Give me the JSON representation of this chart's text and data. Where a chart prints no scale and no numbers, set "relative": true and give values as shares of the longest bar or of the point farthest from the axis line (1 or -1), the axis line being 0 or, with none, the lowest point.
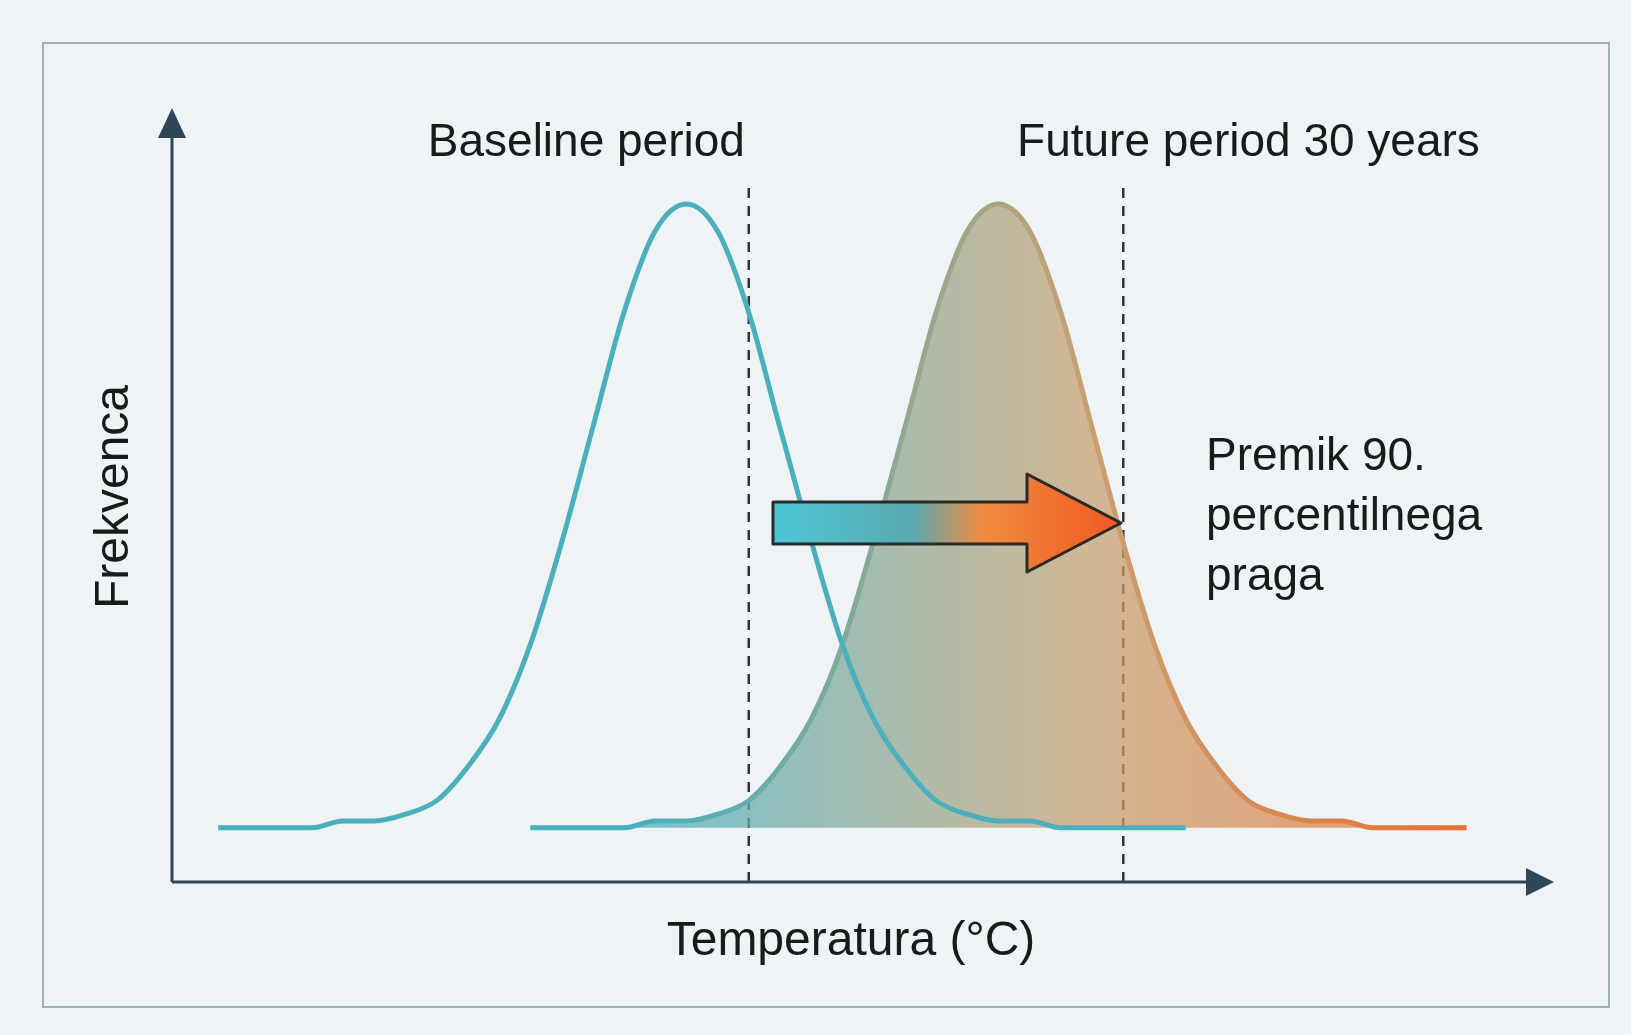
{
  "chart_data": {
    "type": "line",
    "relative": true,
    "legend": false,
    "marker": "none",
    "line_style": "solid",
    "categories": [
      null,
      null,
      null,
      null,
      null,
      null,
      null,
      null,
      null,
      null,
      null,
      null,
      null,
      null,
      null,
      null,
      null,
      null,
      null,
      null,
      null,
      null,
      null,
      null,
      null,
      null,
      null,
      null,
      null,
      null,
      null,
      null,
      null,
      null,
      null,
      null,
      null,
      null,
      null,
      null,
      null,
      null,
      null,
      null
    ],
    "xlabel": "Temperatura (°C)",
    "ylabel": "Frekvenca",
    "series": [
      {
        "name": "Baseline period",
        "type": "line",
        "color": "#4cb0bc",
        "values": [
          null,
          0.08,
          0.08,
          0.08,
          0.08,
          0.09,
          0.09,
          0.1,
          0.12,
          0.17,
          0.24,
          0.35,
          0.5,
          0.67,
          0.84,
          0.96,
          1.0,
          0.96,
          0.84,
          0.67,
          null,
          0.35,
          0.24,
          0.17,
          0.12,
          0.1,
          0.09,
          0.09,
          0.08,
          0.08,
          0.08,
          0.08,
          0.08,
          null,
          null,
          null,
          null,
          null,
          null,
          null,
          null,
          null,
          null,
          null
        ]
      },
      {
        "name": "Future period 30 years",
        "type": "area",
        "color": "#ef6a2a",
        "values": [
          null,
          null,
          null,
          null,
          null,
          null,
          null,
          null,
          null,
          null,
          null,
          0.08,
          0.08,
          0.08,
          0.08,
          0.09,
          0.09,
          0.1,
          0.12,
          0.17,
          0.24,
          0.35,
          null,
          0.67,
          0.84,
          0.96,
          1.0,
          0.96,
          0.84,
          0.67,
          0.5,
          0.35,
          0.24,
          0.17,
          0.12,
          0.1,
          0.09,
          0.09,
          0.08,
          0.08,
          0.08,
          0.08,
          null,
          null
        ]
      }
    ],
    "annotations": [
      "Premik 90. percentilnega praga"
    ]
  }
}
